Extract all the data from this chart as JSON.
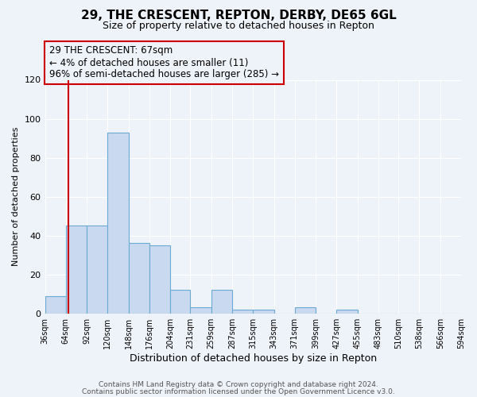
{
  "title": "29, THE CRESCENT, REPTON, DERBY, DE65 6GL",
  "subtitle": "Size of property relative to detached houses in Repton",
  "xlabel": "Distribution of detached houses by size in Repton",
  "ylabel": "Number of detached properties",
  "bar_edges": [
    36,
    64,
    92,
    120,
    148,
    176,
    204,
    231,
    259,
    287,
    315,
    343,
    371,
    399,
    427,
    455,
    483,
    510,
    538,
    566,
    594
  ],
  "bar_heights": [
    9,
    45,
    45,
    93,
    36,
    35,
    12,
    3,
    12,
    2,
    2,
    0,
    3,
    0,
    2,
    0,
    0,
    0,
    0,
    0
  ],
  "bar_color": "#c9d9ef",
  "bar_edge_color": "#6aaad4",
  "ylim": [
    0,
    120
  ],
  "yticks": [
    0,
    20,
    40,
    60,
    80,
    100,
    120
  ],
  "property_line_x": 67,
  "property_line_color": "#cc0000",
  "annotation_box_color": "#cc0000",
  "annotation_lines": [
    "29 THE CRESCENT: 67sqm",
    "← 4% of detached houses are smaller (11)",
    "96% of semi-detached houses are larger (285) →"
  ],
  "footer_line1": "Contains HM Land Registry data © Crown copyright and database right 2024.",
  "footer_line2": "Contains public sector information licensed under the Open Government Licence v3.0.",
  "background_color": "#eef2f9",
  "grid_color": "#ffffff",
  "title_fontsize": 11,
  "subtitle_fontsize": 9,
  "xlabel_fontsize": 9,
  "ylabel_fontsize": 8,
  "annotation_fontsize": 8.5,
  "footer_fontsize": 6.5
}
